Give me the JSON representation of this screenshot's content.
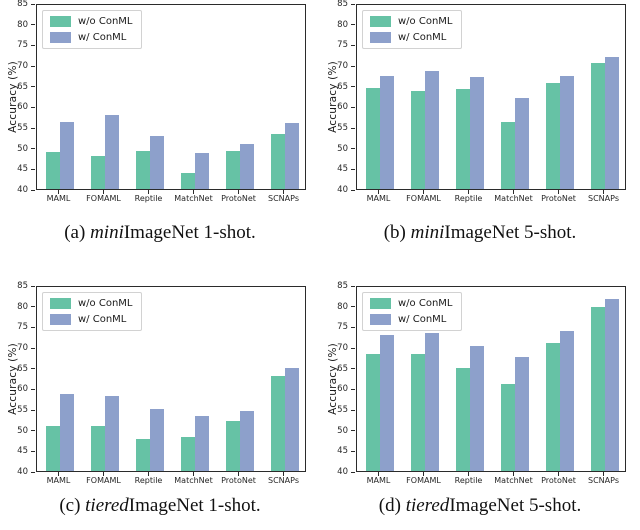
{
  "figure": {
    "ylabel": "Accuracy (%)",
    "categories": [
      "MAML",
      "FOMAML",
      "Reptile",
      "MatchNet",
      "ProtoNet",
      "SCNAPs"
    ],
    "yticks": [
      40,
      45,
      50,
      55,
      60,
      65,
      70,
      75,
      80,
      85
    ],
    "ylim": [
      40,
      85
    ],
    "colors": {
      "wo_conml": "#66c2a5",
      "w_conml": "#8da0cb",
      "spine": "#2b2b2b",
      "tick_text": "#262626"
    },
    "legend": {
      "position": "upper-left",
      "items": [
        {
          "key": "wo-conml",
          "label": "w/o ConML",
          "color": "#66c2a5"
        },
        {
          "key": "w-conml",
          "label": "w/ ConML",
          "color": "#8da0cb"
        }
      ]
    }
  },
  "chart_data": [
    {
      "id": "a",
      "type": "bar",
      "title": "(a) miniImageNet 1-shot.",
      "caption_parts": [
        {
          "text": "(a) ",
          "italic": false
        },
        {
          "text": "mini",
          "italic": true
        },
        {
          "text": "ImageNet 1-shot.",
          "italic": false
        }
      ],
      "xlabel": "",
      "ylabel": "Accuracy (%)",
      "ylim": [
        40,
        85
      ],
      "yticks": [
        40,
        45,
        50,
        55,
        60,
        65,
        70,
        75,
        80,
        85
      ],
      "grid": false,
      "legend_position": "upper-left",
      "categories": [
        "MAML",
        "FOMAML",
        "Reptile",
        "MatchNet",
        "ProtoNet",
        "SCNAPs"
      ],
      "series": [
        {
          "name": "w/o ConML",
          "color": "#66c2a5",
          "values": [
            48.9,
            48.1,
            49.2,
            43.9,
            49.2,
            53.3
          ]
        },
        {
          "name": "w/ ConML",
          "color": "#8da0cb",
          "values": [
            56.2,
            57.8,
            52.9,
            48.7,
            50.9,
            55.9
          ]
        }
      ]
    },
    {
      "id": "b",
      "type": "bar",
      "title": "(b) miniImageNet 5-shot.",
      "caption_parts": [
        {
          "text": "(b) ",
          "italic": false
        },
        {
          "text": "mini",
          "italic": true
        },
        {
          "text": "ImageNet 5-shot.",
          "italic": false
        }
      ],
      "xlabel": "",
      "ylabel": "Accuracy (%)",
      "ylim": [
        40,
        85
      ],
      "yticks": [
        40,
        45,
        50,
        55,
        60,
        65,
        70,
        75,
        80,
        85
      ],
      "grid": false,
      "legend_position": "upper-left",
      "categories": [
        "MAML",
        "FOMAML",
        "Reptile",
        "MatchNet",
        "ProtoNet",
        "SCNAPs"
      ],
      "series": [
        {
          "name": "w/o ConML",
          "color": "#66c2a5",
          "values": [
            64.5,
            63.8,
            64.3,
            56.1,
            65.6,
            70.4
          ]
        },
        {
          "name": "w/ ConML",
          "color": "#8da0cb",
          "values": [
            67.4,
            68.6,
            67.2,
            62.1,
            67.4,
            71.9
          ]
        }
      ]
    },
    {
      "id": "c",
      "type": "bar",
      "title": "(c) tieredImageNet 1-shot.",
      "caption_parts": [
        {
          "text": "(c) ",
          "italic": false
        },
        {
          "text": "tiered",
          "italic": true
        },
        {
          "text": "ImageNet 1-shot.",
          "italic": false
        }
      ],
      "xlabel": "",
      "ylabel": "Accuracy (%)",
      "ylim": [
        40,
        85
      ],
      "yticks": [
        40,
        45,
        50,
        55,
        60,
        65,
        70,
        75,
        80,
        85
      ],
      "grid": false,
      "legend_position": "upper-left",
      "categories": [
        "MAML",
        "FOMAML",
        "Reptile",
        "MatchNet",
        "ProtoNet",
        "SCNAPs"
      ],
      "series": [
        {
          "name": "w/o ConML",
          "color": "#66c2a5",
          "values": [
            50.9,
            51.0,
            47.7,
            48.3,
            52.0,
            62.9
          ]
        },
        {
          "name": "w/ ConML",
          "color": "#8da0cb",
          "values": [
            58.7,
            58.2,
            54.9,
            53.2,
            54.5,
            64.9
          ]
        }
      ]
    },
    {
      "id": "d",
      "type": "bar",
      "title": "(d) tieredImageNet 5-shot.",
      "caption_parts": [
        {
          "text": "(d) ",
          "italic": false
        },
        {
          "text": "tiered",
          "italic": true
        },
        {
          "text": "ImageNet 5-shot.",
          "italic": false
        }
      ],
      "xlabel": "",
      "ylabel": "Accuracy (%)",
      "ylim": [
        40,
        85
      ],
      "yticks": [
        40,
        45,
        50,
        55,
        60,
        65,
        70,
        75,
        80,
        85
      ],
      "grid": false,
      "legend_position": "upper-left",
      "categories": [
        "MAML",
        "FOMAML",
        "Reptile",
        "MatchNet",
        "ProtoNet",
        "SCNAPs"
      ],
      "series": [
        {
          "name": "w/o ConML",
          "color": "#66c2a5",
          "values": [
            68.2,
            68.2,
            65.0,
            61.0,
            71.0,
            79.7
          ]
        },
        {
          "name": "w/ ConML",
          "color": "#8da0cb",
          "values": [
            72.9,
            73.4,
            70.2,
            67.6,
            73.8,
            81.7
          ]
        }
      ]
    }
  ]
}
